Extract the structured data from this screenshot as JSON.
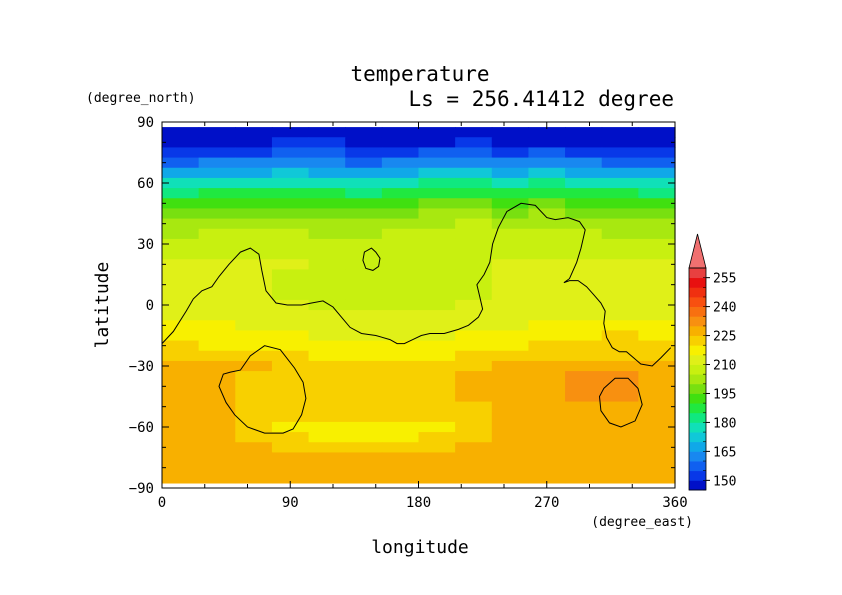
{
  "chart_data": {
    "type": "heatmap",
    "title": "temperature",
    "subtitle": "Ls = 256.41412 degree",
    "xlabel": "longitude",
    "ylabel": "latitude",
    "x_units": "(degree_east)",
    "y_units": "(degree_north)",
    "xlim": [
      0,
      360
    ],
    "ylim": [
      -90,
      90
    ],
    "x_ticks": [
      "0",
      "90",
      "180",
      "270",
      "360"
    ],
    "y_ticks": [
      "90",
      "60",
      "30",
      "0",
      "−30",
      "−60",
      "−90"
    ],
    "x_tick_values": [
      0,
      90,
      180,
      270,
      360
    ],
    "y_tick_values": [
      90,
      60,
      30,
      0,
      -30,
      -60,
      -90
    ],
    "colorbar": {
      "levels": [
        145,
        150,
        155,
        160,
        165,
        170,
        175,
        180,
        185,
        190,
        195,
        200,
        205,
        210,
        215,
        220,
        225,
        230,
        235,
        240,
        245,
        250,
        255,
        260
      ],
      "colors": [
        "#0010c8",
        "#0838e8",
        "#1060f0",
        "#1888f0",
        "#10a8e8",
        "#10c8d8",
        "#10e0b8",
        "#10e880",
        "#20e840",
        "#40e010",
        "#78e010",
        "#a8e810",
        "#c8f010",
        "#e0f018",
        "#f8f000",
        "#f8d000",
        "#f8b000",
        "#f89010",
        "#f87010",
        "#f85010",
        "#f03010",
        "#e81010",
        "#e84040"
      ],
      "tick_labels": [
        "150",
        "165",
        "180",
        "195",
        "210",
        "225",
        "240",
        "255"
      ],
      "tick_values": [
        150,
        165,
        180,
        195,
        210,
        225,
        240,
        255
      ],
      "overflow_color": "#f07070"
    },
    "field": {
      "lat": [
        85,
        80,
        75,
        70,
        65,
        60,
        55,
        50,
        45,
        40,
        35,
        30,
        25,
        20,
        15,
        10,
        5,
        0,
        -5,
        -10,
        -15,
        -20,
        -25,
        -30,
        -35,
        -40,
        -45,
        -50,
        -55,
        -60,
        -65,
        -70,
        -75,
        -80,
        -85
      ],
      "values": [
        [
          147,
          146,
          146,
          147,
          147,
          146,
          147,
          146,
          147,
          147,
          146,
          147,
          146,
          147
        ],
        [
          149,
          149,
          149,
          150,
          150,
          149,
          149,
          149,
          150,
          149,
          149,
          149,
          149,
          149
        ],
        [
          153,
          154,
          154,
          155,
          155,
          154,
          154,
          155,
          155,
          154,
          155,
          154,
          154,
          153
        ],
        [
          158,
          160,
          160,
          161,
          160,
          159,
          160,
          161,
          161,
          160,
          161,
          160,
          159,
          158
        ],
        [
          166,
          168,
          168,
          170,
          168,
          167,
          168,
          170,
          171,
          169,
          170,
          169,
          167,
          166
        ],
        [
          176,
          178,
          178,
          179,
          177,
          176,
          178,
          180,
          181,
          179,
          180,
          179,
          177,
          176
        ],
        [
          184,
          186,
          186,
          187,
          185,
          184,
          186,
          188,
          189,
          187,
          188,
          187,
          185,
          184
        ],
        [
          191,
          193,
          193,
          194,
          192,
          191,
          193,
          195,
          196,
          194,
          195,
          194,
          192,
          191
        ],
        [
          196,
          198,
          198,
          199,
          197,
          196,
          198,
          200,
          201,
          199,
          200,
          199,
          197,
          196
        ],
        [
          200,
          202,
          202,
          203,
          201,
          200,
          202,
          204,
          205,
          203,
          204,
          203,
          201,
          200
        ],
        [
          203,
          205,
          205,
          206,
          204,
          203,
          205,
          206,
          207,
          205,
          206,
          205,
          204,
          203
        ],
        [
          206,
          207,
          207,
          207,
          206,
          205,
          207,
          207,
          208,
          207,
          207,
          207,
          206,
          206
        ],
        [
          208,
          209,
          209,
          209,
          208,
          207,
          208,
          208,
          209,
          209,
          209,
          209,
          209,
          208
        ],
        [
          210,
          210,
          210,
          210,
          209,
          208,
          209,
          209,
          209,
          210,
          210,
          210,
          210,
          210
        ],
        [
          211,
          211,
          210,
          209,
          209,
          208,
          208,
          208,
          209,
          210,
          211,
          211,
          211,
          211
        ],
        [
          212,
          211,
          210,
          209,
          208,
          208,
          208,
          208,
          209,
          210,
          211,
          212,
          212,
          212
        ],
        [
          212,
          212,
          210,
          209,
          208,
          208,
          208,
          208,
          209,
          210,
          212,
          212,
          212,
          212
        ],
        [
          213,
          212,
          211,
          210,
          209,
          209,
          208,
          209,
          210,
          211,
          212,
          213,
          213,
          213
        ],
        [
          214,
          213,
          212,
          211,
          210,
          210,
          210,
          210,
          211,
          212,
          213,
          214,
          214,
          214
        ],
        [
          216,
          215,
          214,
          213,
          212,
          212,
          212,
          212,
          213,
          214,
          216,
          216,
          216,
          216
        ],
        [
          218,
          217,
          216,
          215,
          214,
          214,
          214,
          214,
          215,
          216,
          218,
          219,
          220,
          219
        ],
        [
          221,
          219,
          218,
          217,
          217,
          216,
          216,
          216,
          217,
          218,
          220,
          222,
          222,
          221
        ],
        [
          224,
          223,
          222,
          220,
          219,
          219,
          219,
          219,
          220,
          221,
          223,
          224,
          224,
          223
        ],
        [
          226,
          226,
          225,
          222,
          221,
          220,
          220,
          221,
          224,
          225,
          227,
          229,
          229,
          227
        ],
        [
          227,
          227,
          224,
          221,
          221,
          220,
          220,
          221,
          225,
          226,
          229,
          231,
          231,
          228
        ],
        [
          227,
          227,
          222,
          220,
          220,
          220,
          220,
          220,
          225,
          226,
          229,
          231,
          230,
          228
        ],
        [
          227,
          226,
          221,
          220,
          220,
          220,
          220,
          220,
          225,
          226,
          228,
          230,
          230,
          228
        ],
        [
          227,
          226,
          220,
          220,
          220,
          220,
          220,
          220,
          224,
          226,
          227,
          228,
          228,
          227
        ],
        [
          227,
          226,
          221,
          220,
          220,
          220,
          220,
          220,
          222,
          225,
          226,
          227,
          227,
          227
        ],
        [
          226,
          226,
          222,
          219,
          218,
          219,
          219,
          219,
          222,
          225,
          226,
          226,
          226,
          226
        ],
        [
          226,
          226,
          224,
          221,
          219,
          219,
          219,
          220,
          224,
          225,
          226,
          226,
          226,
          226
        ],
        [
          226,
          226,
          226,
          224,
          222,
          222,
          222,
          223,
          225,
          226,
          226,
          226,
          226,
          226
        ],
        [
          226,
          226,
          226,
          226,
          225,
          225,
          225,
          225,
          226,
          226,
          226,
          226,
          226,
          226
        ],
        [
          226,
          226,
          226,
          226,
          226,
          226,
          226,
          226,
          226,
          226,
          226,
          226,
          226,
          226
        ],
        [
          226,
          226,
          226,
          226,
          226,
          226,
          226,
          226,
          226,
          226,
          226,
          226,
          226,
          226
        ]
      ],
      "lon_cells": 14
    },
    "contours": [
      {
        "name": "topography-main",
        "points": [
          [
            0,
            -19
          ],
          [
            8,
            -13
          ],
          [
            17,
            -3
          ],
          [
            22,
            3
          ],
          [
            28,
            7
          ],
          [
            35,
            9
          ],
          [
            40,
            14
          ],
          [
            47,
            20
          ],
          [
            55,
            26
          ],
          [
            62,
            28
          ],
          [
            68,
            25
          ],
          [
            70,
            17
          ],
          [
            73,
            7
          ],
          [
            80,
            1
          ],
          [
            88,
            0
          ],
          [
            98,
            0
          ],
          [
            105,
            1
          ],
          [
            113,
            2
          ],
          [
            120,
            -1
          ],
          [
            126,
            -6
          ],
          [
            132,
            -11
          ],
          [
            140,
            -14
          ],
          [
            150,
            -15
          ],
          [
            160,
            -17
          ],
          [
            165,
            -19
          ],
          [
            170,
            -19
          ],
          [
            176,
            -17
          ],
          [
            182,
            -15
          ],
          [
            188,
            -14
          ],
          [
            198,
            -14
          ],
          [
            208,
            -12
          ],
          [
            215,
            -10
          ],
          [
            222,
            -6
          ],
          [
            225,
            -2
          ],
          [
            223,
            4
          ],
          [
            221,
            10
          ],
          [
            226,
            15
          ],
          [
            230,
            21
          ],
          [
            232,
            30
          ],
          [
            236,
            38
          ],
          [
            242,
            46
          ],
          [
            252,
            50
          ],
          [
            262,
            49
          ],
          [
            270,
            43
          ],
          [
            276,
            42
          ],
          [
            285,
            43
          ],
          [
            293,
            41
          ],
          [
            297,
            37
          ],
          [
            294,
            28
          ],
          [
            291,
            21
          ],
          [
            286,
            13
          ],
          [
            282,
            11
          ],
          [
            286,
            12
          ],
          [
            292,
            12
          ],
          [
            298,
            9
          ],
          [
            303,
            5
          ],
          [
            308,
            1
          ],
          [
            311,
            -3
          ],
          [
            310,
            -9
          ],
          [
            312,
            -16
          ],
          [
            316,
            -21
          ],
          [
            321,
            -23
          ],
          [
            326,
            -23
          ],
          [
            331,
            -26
          ],
          [
            336,
            -29
          ],
          [
            344,
            -30
          ],
          [
            350,
            -26
          ],
          [
            357,
            -21
          ]
        ],
        "closed": false
      },
      {
        "name": "topography-small-north",
        "points": [
          [
            142,
            26
          ],
          [
            147,
            28
          ],
          [
            150,
            26
          ],
          [
            153,
            23
          ],
          [
            152,
            19
          ],
          [
            148,
            17
          ],
          [
            143,
            18
          ],
          [
            141,
            22
          ]
        ],
        "closed": true
      },
      {
        "name": "topography-left-crater",
        "points": [
          [
            55,
            -32
          ],
          [
            62,
            -25
          ],
          [
            72,
            -20
          ],
          [
            83,
            -22
          ],
          [
            93,
            -31
          ],
          [
            99,
            -38
          ],
          [
            101,
            -46
          ],
          [
            98,
            -54
          ],
          [
            92,
            -61
          ],
          [
            85,
            -63
          ],
          [
            72,
            -63
          ],
          [
            60,
            -60
          ],
          [
            51,
            -54
          ],
          [
            45,
            -48
          ],
          [
            40,
            -40
          ],
          [
            43,
            -34
          ],
          [
            48,
            -33
          ]
        ],
        "closed": true
      },
      {
        "name": "topography-right-crater",
        "points": [
          [
            310,
            -41
          ],
          [
            318,
            -36
          ],
          [
            327,
            -36
          ],
          [
            334,
            -41
          ],
          [
            337,
            -49
          ],
          [
            332,
            -57
          ],
          [
            322,
            -60
          ],
          [
            314,
            -58
          ],
          [
            308,
            -52
          ],
          [
            307,
            -45
          ]
        ],
        "closed": true
      }
    ]
  }
}
